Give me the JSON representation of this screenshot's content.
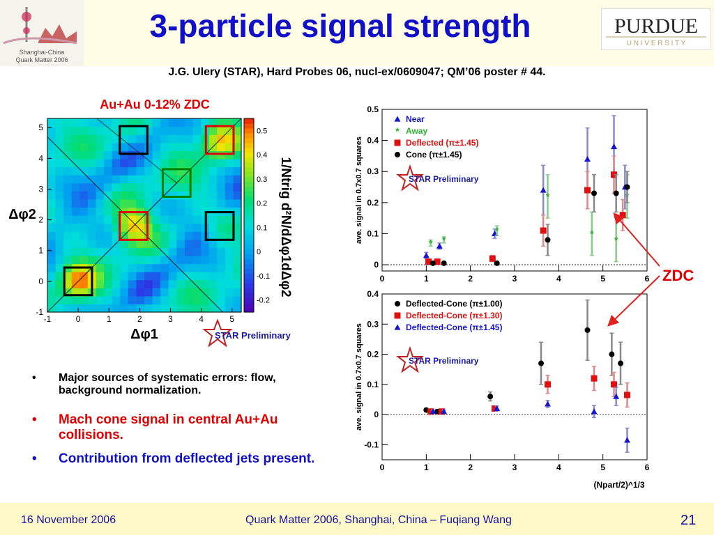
{
  "slide": {
    "title": "3-particle signal strength",
    "subtitle": "J.G. Ulery (STAR), Hard Probes 06, nucl-ex/0609047; QM’06 poster # 44.",
    "logo_left_text": [
      "Shanghai-China",
      "Quark Matter 2006"
    ],
    "logo_right_name": "PURDUE",
    "logo_right_sub": "U N I V E R S I T Y",
    "footer_date": "16 November 2006",
    "footer_conf": "Quark Matter 2006, Shanghai, China – Fuqiang Wang",
    "page_number": "21",
    "zdc_label": "ZDC",
    "star_preliminary": "STAR Preliminary"
  },
  "bullets": [
    {
      "text": "Major sources of systematic errors: flow, background normalization.",
      "color": "#000000"
    },
    {
      "text": "Mach cone signal in central Au+Au collisions.",
      "color": "#e00000"
    },
    {
      "text": "Contribution from deflected jets present.",
      "color": "#1010c8"
    }
  ],
  "chart_data": [
    {
      "type": "heatmap",
      "title": "Au+Au 0-12% ZDC",
      "xlabel": "Δφ1",
      "ylabel": "Δφ2",
      "zlabel": "1/Ntrig d²N/dΔφ1dΔφ2",
      "xlim": [
        -1,
        5.3
      ],
      "ylim": [
        -1,
        5.3
      ],
      "x_ticks": [
        "-1",
        "0",
        "1",
        "2",
        "3",
        "4",
        "5"
      ],
      "y_ticks": [
        "-1",
        "0",
        "1",
        "2",
        "3",
        "4",
        "5"
      ],
      "z_ticks": [
        "0.5",
        "0.4",
        "0.3",
        "0.2",
        "0.1",
        "0",
        "-0.1",
        "-0.2"
      ],
      "zlim": [
        -0.25,
        0.55
      ],
      "boxes": [
        {
          "x": 0,
          "y": 0,
          "color": "black"
        },
        {
          "x": 1.8,
          "y": 4.6,
          "color": "black"
        },
        {
          "x": 4.6,
          "y": 1.8,
          "color": "black"
        },
        {
          "x": 3.2,
          "y": 3.2,
          "color": "green"
        },
        {
          "x": 1.8,
          "y": 1.8,
          "color": "red"
        },
        {
          "x": 4.6,
          "y": 4.6,
          "color": "red"
        }
      ]
    },
    {
      "type": "scatter",
      "xlim": [
        0,
        6
      ],
      "ylim": [
        -0.02,
        0.5
      ],
      "ylabel": "ave. signal in 0.7x0.7 squares",
      "x_ticks": [
        0,
        1,
        2,
        3,
        4,
        5,
        6
      ],
      "y_ticks": [
        0,
        0.1,
        0.2,
        0.3,
        0.4,
        0.5
      ],
      "legend_position": "top-left",
      "series": [
        {
          "name": "Near",
          "color": "#1515d0",
          "marker": "triangle",
          "points": [
            [
              1.0,
              0.03,
              0.01
            ],
            [
              1.3,
              0.06,
              0.01
            ],
            [
              2.55,
              0.1,
              0.015
            ],
            [
              3.65,
              0.24,
              0.08
            ],
            [
              4.65,
              0.34,
              0.1
            ],
            [
              5.25,
              0.38,
              0.1
            ],
            [
              5.5,
              0.25,
              0.07
            ]
          ]
        },
        {
          "name": "Away",
          "color": "#30b030",
          "marker": "star",
          "points": [
            [
              1.1,
              0.07,
              0.01
            ],
            [
              1.4,
              0.08,
              0.01
            ],
            [
              2.6,
              0.11,
              0.015
            ],
            [
              3.75,
              0.22,
              0.07
            ],
            [
              4.75,
              0.1,
              0.07
            ],
            [
              5.3,
              0.08,
              0.07
            ],
            [
              5.55,
              0.22,
              0.07
            ]
          ]
        },
        {
          "name": "Deflected (π±1.45)",
          "color": "#e01010",
          "marker": "square",
          "points": [
            [
              1.05,
              0.01,
              0.005
            ],
            [
              1.25,
              0.01,
              0.005
            ],
            [
              2.5,
              0.02,
              0.01
            ],
            [
              3.65,
              0.11,
              0.05
            ],
            [
              4.65,
              0.24,
              0.06
            ],
            [
              5.25,
              0.29,
              0.06
            ],
            [
              5.45,
              0.16,
              0.05
            ]
          ]
        },
        {
          "name": "Cone (π±1.45)",
          "color": "#000000",
          "marker": "circle",
          "points": [
            [
              1.15,
              0.005,
              0.004
            ],
            [
              1.4,
              0.005,
              0.004
            ],
            [
              2.6,
              0.005,
              0.006
            ],
            [
              3.75,
              0.08,
              0.05
            ],
            [
              4.8,
              0.23,
              0.06
            ],
            [
              5.3,
              0.23,
              0.06
            ],
            [
              5.55,
              0.25,
              0.05
            ]
          ]
        }
      ]
    },
    {
      "type": "scatter",
      "xlim": [
        0,
        6
      ],
      "ylim": [
        -0.15,
        0.4
      ],
      "ylabel": "ave. signal in 0.7x0.7 squares",
      "xlabel": "(Npart/2)^1/3",
      "x_ticks": [
        0,
        1,
        2,
        3,
        4,
        5,
        6
      ],
      "y_ticks": [
        -0.1,
        0,
        0.1,
        0.2,
        0.3,
        0.4
      ],
      "legend_position": "top-left",
      "series": [
        {
          "name": "Deflected-Cone (π±1.00)",
          "color": "#000000",
          "marker": "circle",
          "points": [
            [
              1.0,
              0.015,
              0.006
            ],
            [
              1.25,
              0.01,
              0.006
            ],
            [
              2.45,
              0.06,
              0.015
            ],
            [
              3.6,
              0.17,
              0.07
            ],
            [
              4.65,
              0.28,
              0.1
            ],
            [
              5.2,
              0.2,
              0.07
            ],
            [
              5.4,
              0.17,
              0.07
            ]
          ]
        },
        {
          "name": "Deflected-Cone (π±1.30)",
          "color": "#e01010",
          "marker": "square",
          "points": [
            [
              1.1,
              0.01,
              0.005
            ],
            [
              1.35,
              0.01,
              0.005
            ],
            [
              2.55,
              0.02,
              0.008
            ],
            [
              3.75,
              0.1,
              0.03
            ],
            [
              4.8,
              0.12,
              0.04
            ],
            [
              5.25,
              0.1,
              0.04
            ],
            [
              5.55,
              0.065,
              0.04
            ]
          ]
        },
        {
          "name": "Deflected-Cone (π±1.45)",
          "color": "#1515d0",
          "marker": "triangle",
          "points": [
            [
              1.15,
              0.01,
              0.005
            ],
            [
              1.4,
              0.01,
              0.005
            ],
            [
              2.6,
              0.02,
              0.008
            ],
            [
              3.75,
              0.035,
              0.012
            ],
            [
              4.8,
              0.01,
              0.02
            ],
            [
              5.3,
              0.06,
              0.03
            ],
            [
              5.55,
              -0.085,
              0.04
            ]
          ]
        }
      ]
    }
  ]
}
